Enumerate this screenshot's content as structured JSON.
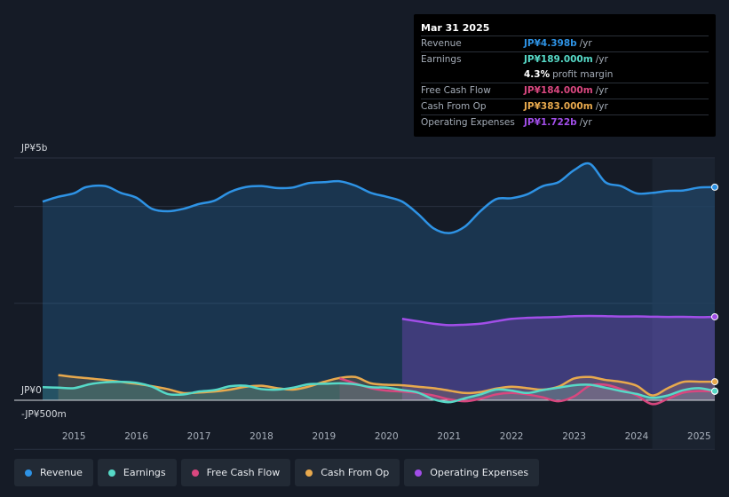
{
  "tooltip": {
    "date": "Mar 31 2025",
    "rows": [
      {
        "label": "Revenue",
        "value": "JP¥4.398b",
        "unit": "/yr",
        "color": "#2e93e5"
      },
      {
        "label": "Earnings",
        "value": "JP¥189.000m",
        "unit": "/yr",
        "color": "#56d9c7"
      },
      {
        "label": "",
        "value": "4.3%",
        "unit": "profit margin",
        "color": "#ffffff"
      },
      {
        "label": "Free Cash Flow",
        "value": "JP¥184.000m",
        "unit": "/yr",
        "color": "#d9477f"
      },
      {
        "label": "Cash From Op",
        "value": "JP¥383.000m",
        "unit": "/yr",
        "color": "#e8a94d"
      },
      {
        "label": "Operating Expenses",
        "value": "JP¥1.722b",
        "unit": "/yr",
        "color": "#a14ee8"
      }
    ]
  },
  "legend": [
    {
      "label": "Revenue",
      "color": "#2e93e5"
    },
    {
      "label": "Earnings",
      "color": "#56d9c7"
    },
    {
      "label": "Free Cash Flow",
      "color": "#d9477f"
    },
    {
      "label": "Cash From Op",
      "color": "#e8a94d"
    },
    {
      "label": "Operating Expenses",
      "color": "#a14ee8"
    }
  ],
  "chart_data": {
    "type": "area",
    "title": "",
    "y_top_label": "JP¥5b",
    "y_zero_label": "JP¥0",
    "y_bottom_label": "-JP¥500m",
    "ylim": [
      -500,
      5000
    ],
    "y_unit": "JP¥m",
    "xlim": [
      2014.5,
      2025.25
    ],
    "x_ticks": [
      {
        "value": 2015,
        "label": "2015"
      },
      {
        "value": 2016,
        "label": "2016"
      },
      {
        "value": 2017,
        "label": "2017"
      },
      {
        "value": 2018,
        "label": "2018"
      },
      {
        "value": 2019,
        "label": "2019"
      },
      {
        "value": 2020,
        "label": "2020"
      },
      {
        "value": 2021,
        "label": "2021"
      },
      {
        "value": 2022,
        "label": "2022"
      },
      {
        "value": 2023,
        "label": "2023"
      },
      {
        "value": 2024,
        "label": "2024"
      },
      {
        "value": 2025,
        "label": "2025"
      }
    ],
    "highlight_start": 2024.25,
    "series": [
      {
        "name": "Revenue",
        "color": "#2e93e5",
        "fill": true,
        "x": [
          2014.5,
          2014.75,
          2015.0,
          2015.2,
          2015.5,
          2015.75,
          2016.0,
          2016.25,
          2016.5,
          2016.75,
          2017.0,
          2017.25,
          2017.5,
          2017.75,
          2018.0,
          2018.25,
          2018.5,
          2018.75,
          2019.0,
          2019.25,
          2019.5,
          2019.75,
          2020.0,
          2020.25,
          2020.5,
          2020.75,
          2021.0,
          2021.25,
          2021.5,
          2021.75,
          2022.0,
          2022.25,
          2022.5,
          2022.75,
          2023.0,
          2023.25,
          2023.5,
          2023.75,
          2024.0,
          2024.25,
          2024.5,
          2024.75,
          2025.0,
          2025.25
        ],
        "y": [
          4100,
          4200,
          4270,
          4400,
          4420,
          4280,
          4180,
          3950,
          3900,
          3950,
          4050,
          4120,
          4300,
          4400,
          4420,
          4380,
          4390,
          4480,
          4500,
          4520,
          4430,
          4280,
          4200,
          4100,
          3850,
          3550,
          3450,
          3580,
          3900,
          4150,
          4170,
          4250,
          4420,
          4500,
          4750,
          4880,
          4500,
          4420,
          4270,
          4280,
          4320,
          4330,
          4390,
          4398
        ]
      },
      {
        "name": "Operating Expenses",
        "color": "#a14ee8",
        "fill": true,
        "x": [
          2020.25,
          2020.5,
          2020.75,
          2021.0,
          2021.25,
          2021.5,
          2021.75,
          2022.0,
          2022.25,
          2022.5,
          2022.75,
          2023.0,
          2023.25,
          2023.5,
          2023.75,
          2024.0,
          2024.25,
          2024.5,
          2024.75,
          2025.0,
          2025.25
        ],
        "y": [
          1680,
          1630,
          1580,
          1550,
          1560,
          1580,
          1630,
          1680,
          1700,
          1710,
          1720,
          1735,
          1740,
          1735,
          1728,
          1730,
          1725,
          1720,
          1722,
          1715,
          1722
        ]
      },
      {
        "name": "Cash From Op",
        "color": "#e8a94d",
        "fill": true,
        "x": [
          2014.75,
          2015.0,
          2015.25,
          2015.5,
          2015.75,
          2016.0,
          2016.25,
          2016.5,
          2016.75,
          2017.0,
          2017.25,
          2017.5,
          2017.75,
          2018.0,
          2018.25,
          2018.5,
          2018.75,
          2019.0,
          2019.25,
          2019.5,
          2019.75,
          2020.0,
          2020.25,
          2020.5,
          2020.75,
          2021.0,
          2021.25,
          2021.5,
          2021.75,
          2022.0,
          2022.25,
          2022.5,
          2022.75,
          2023.0,
          2023.25,
          2023.5,
          2023.75,
          2024.0,
          2024.25,
          2024.5,
          2024.75,
          2025.0,
          2025.25
        ],
        "y": [
          520,
          480,
          450,
          420,
          380,
          340,
          290,
          230,
          150,
          160,
          180,
          220,
          280,
          300,
          250,
          220,
          280,
          380,
          460,
          480,
          350,
          320,
          310,
          280,
          250,
          200,
          150,
          170,
          240,
          280,
          250,
          220,
          280,
          450,
          480,
          420,
          380,
          300,
          100,
          250,
          380,
          383,
          383
        ]
      },
      {
        "name": "Free Cash Flow",
        "color": "#d9477f",
        "fill": true,
        "x": [
          2019.25,
          2019.5,
          2019.75,
          2020.0,
          2020.25,
          2020.5,
          2020.75,
          2021.0,
          2021.25,
          2021.5,
          2021.75,
          2022.0,
          2022.25,
          2022.5,
          2022.75,
          2023.0,
          2023.25,
          2023.5,
          2023.75,
          2024.0,
          2024.25,
          2024.5,
          2024.75,
          2025.0,
          2025.25
        ],
        "y": [
          450,
          350,
          250,
          200,
          180,
          150,
          100,
          20,
          -20,
          30,
          120,
          150,
          120,
          60,
          -20,
          80,
          300,
          320,
          230,
          100,
          -80,
          30,
          160,
          190,
          184
        ]
      },
      {
        "name": "Earnings",
        "color": "#56d9c7",
        "fill": true,
        "x": [
          2014.5,
          2014.75,
          2015.0,
          2015.25,
          2015.5,
          2015.75,
          2016.0,
          2016.25,
          2016.5,
          2016.75,
          2017.0,
          2017.25,
          2017.5,
          2017.75,
          2018.0,
          2018.25,
          2018.5,
          2018.75,
          2019.0,
          2019.25,
          2019.5,
          2019.75,
          2020.0,
          2020.25,
          2020.5,
          2020.75,
          2021.0,
          2021.25,
          2021.5,
          2021.75,
          2022.0,
          2022.25,
          2022.5,
          2022.75,
          2023.0,
          2023.25,
          2023.5,
          2023.75,
          2024.0,
          2024.25,
          2024.5,
          2024.75,
          2025.0,
          2025.25
        ],
        "y": [
          270,
          260,
          250,
          330,
          370,
          380,
          360,
          280,
          130,
          120,
          180,
          210,
          290,
          300,
          230,
          220,
          260,
          330,
          340,
          350,
          330,
          270,
          260,
          210,
          160,
          20,
          -40,
          40,
          120,
          220,
          200,
          150,
          210,
          260,
          310,
          320,
          260,
          190,
          130,
          50,
          100,
          210,
          250,
          189
        ]
      }
    ]
  }
}
